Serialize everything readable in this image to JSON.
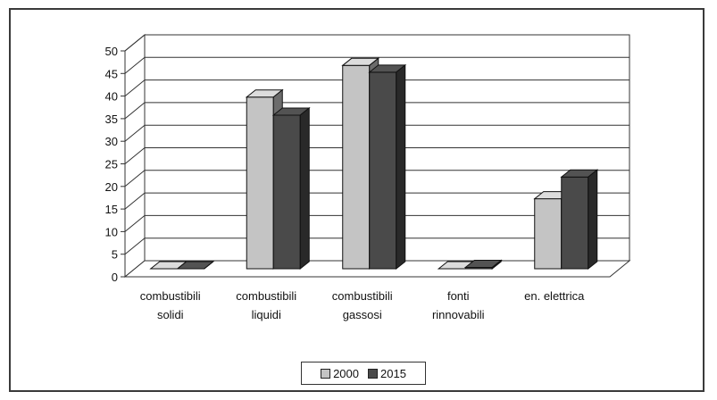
{
  "chart_data": {
    "type": "bar",
    "categories": [
      [
        "combustibili",
        "solidi"
      ],
      [
        "combustibili",
        "liquidi"
      ],
      [
        "combustibili",
        "gassosi"
      ],
      [
        "fonti",
        "rinnovabili"
      ],
      [
        "en. elettrica"
      ]
    ],
    "series": [
      {
        "name": "2000",
        "values": [
          0,
          38,
          45,
          0,
          15.5
        ],
        "color": "#c4c4c4"
      },
      {
        "name": "2015",
        "values": [
          0,
          34,
          43.5,
          0.3,
          20.3
        ],
        "color": "#4a4a4a"
      }
    ],
    "ylim": [
      0,
      50
    ],
    "yticks": [
      0,
      5,
      10,
      15,
      20,
      25,
      30,
      35,
      40,
      45,
      50
    ],
    "grid": true,
    "three_d": true,
    "legend_position": "bottom"
  }
}
